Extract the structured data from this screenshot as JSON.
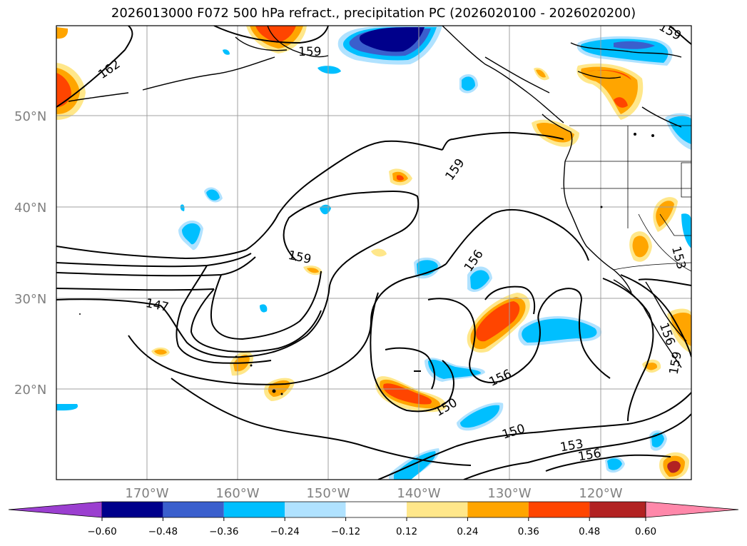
{
  "title": "2026013000 F072 500 hPa refract., precipitation PC (2026020100 - 2026020200)",
  "lat_labels": [
    "50°N",
    "40°N",
    "30°N",
    "20°N"
  ],
  "lon_labels": [
    "170°W",
    "160°W",
    "150°W",
    "140°W",
    "130°W",
    "120°W"
  ],
  "contour_labels": [
    "162",
    "159",
    "159",
    "159",
    "156",
    "147",
    "156",
    "150",
    "150",
    "153",
    "156",
    "153",
    "156",
    "159",
    "159"
  ],
  "colorbar": {
    "ticks": [
      "−0.60",
      "−0.48",
      "−0.36",
      "−0.24",
      "−0.12",
      "0.12",
      "0.24",
      "0.36",
      "0.48",
      "0.60"
    ],
    "colors": [
      "#9b3fd0",
      "#00008b",
      "#3a5fcd",
      "#00bfff",
      "#b0e2ff",
      "#ffffff",
      "#ffe78a",
      "#ffa500",
      "#ff4500",
      "#b22222",
      "#ff88aa"
    ]
  }
}
